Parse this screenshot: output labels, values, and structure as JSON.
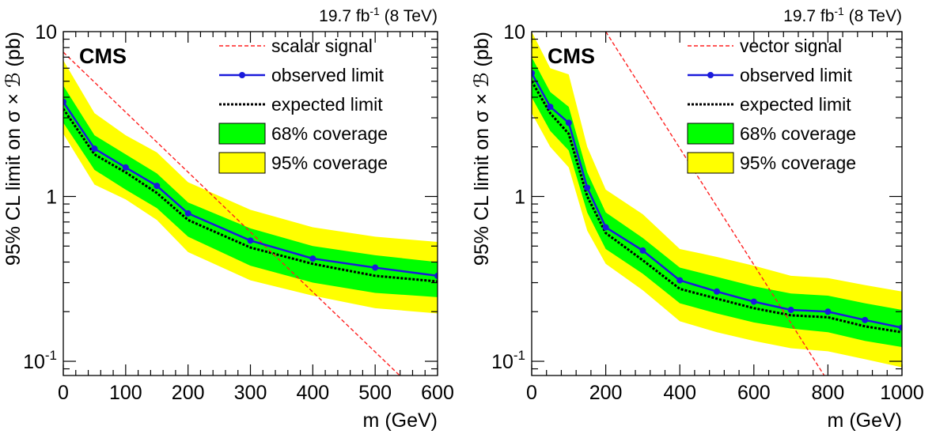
{
  "colors": {
    "band95": "#ffff00",
    "band68": "#00ff00",
    "observed": "#1a1adb",
    "expected": "#000000",
    "signal": "#ff2020",
    "frame": "#000000"
  },
  "chart_data": [
    {
      "type": "line",
      "panel": "left",
      "lumi_label": "19.7 fb",
      "lumi_sup": "-1",
      "lumi_suffix": " (8 TeV)",
      "experiment": "CMS",
      "xlabel": "m (GeV)",
      "ylabel": "95% CL limit on σ × ℬ (pb)",
      "xlim": [
        0,
        600
      ],
      "ylim": [
        0.082,
        10
      ],
      "yscale": "log",
      "grid": false,
      "legend_position": "top-right",
      "x_ticks": [
        0,
        100,
        200,
        300,
        400,
        500,
        600
      ],
      "x_tick_labels": [
        "0",
        "100",
        "200",
        "300",
        "400",
        "500",
        "600"
      ],
      "y_ticks": [
        0.1,
        1,
        10
      ],
      "y_tick_labels": [
        {
          "base": "10",
          "sup": "-1"
        },
        {
          "base": "1",
          "sup": ""
        },
        {
          "base": "10",
          "sup": ""
        }
      ],
      "legend": {
        "signal": "scalar signal",
        "observed": "observed limit",
        "expected": "expected limit",
        "band68": "68% coverage",
        "band95": "95% coverage"
      },
      "x": [
        0,
        50,
        100,
        150,
        200,
        300,
        400,
        500,
        600
      ],
      "observed": [
        3.75,
        1.95,
        1.5,
        1.16,
        0.79,
        0.54,
        0.42,
        0.37,
        0.33
      ],
      "expected": [
        3.4,
        1.8,
        1.4,
        1.05,
        0.72,
        0.49,
        0.39,
        0.33,
        0.305
      ],
      "band68_low": [
        2.8,
        1.45,
        1.1,
        0.85,
        0.57,
        0.38,
        0.3,
        0.26,
        0.245
      ],
      "band68_high": [
        4.7,
        2.35,
        1.8,
        1.38,
        0.92,
        0.64,
        0.5,
        0.44,
        0.4
      ],
      "band95_low": [
        2.4,
        1.18,
        0.96,
        0.72,
        0.46,
        0.31,
        0.25,
        0.21,
        0.195
      ],
      "band95_high": [
        6.7,
        3.2,
        2.35,
        1.85,
        1.22,
        0.83,
        0.65,
        0.57,
        0.53
      ],
      "signal": {
        "x": [
          0,
          550
        ],
        "y": [
          7.5,
          0.075
        ]
      }
    },
    {
      "type": "line",
      "panel": "right",
      "lumi_label": "19.7 fb",
      "lumi_sup": "-1",
      "lumi_suffix": " (8 TeV)",
      "experiment": "CMS",
      "xlabel": "m (GeV)",
      "ylabel": "95% CL limit on σ × ℬ (pb)",
      "xlim": [
        0,
        1000
      ],
      "ylim": [
        0.082,
        10
      ],
      "yscale": "log",
      "grid": false,
      "legend_position": "top-right",
      "x_ticks": [
        0,
        200,
        400,
        600,
        800,
        1000
      ],
      "x_tick_labels": [
        "0",
        "200",
        "400",
        "600",
        "800",
        "1000"
      ],
      "y_ticks": [
        0.1,
        1,
        10
      ],
      "y_tick_labels": [
        {
          "base": "10",
          "sup": "-1"
        },
        {
          "base": "1",
          "sup": ""
        },
        {
          "base": "10",
          "sup": ""
        }
      ],
      "legend": {
        "signal": "vector signal",
        "observed": "observed limit",
        "expected": "expected limit",
        "band68": "68% coverage",
        "band95": "95% coverage"
      },
      "x": [
        0,
        50,
        100,
        150,
        200,
        300,
        400,
        500,
        600,
        700,
        800,
        900,
        1000
      ],
      "observed": [
        5.6,
        3.5,
        2.8,
        1.13,
        0.65,
        0.47,
        0.31,
        0.265,
        0.23,
        0.205,
        0.2,
        0.178,
        0.16
      ],
      "expected": [
        5.0,
        3.2,
        2.4,
        1.0,
        0.6,
        0.41,
        0.275,
        0.24,
        0.21,
        0.19,
        0.185,
        0.163,
        0.15
      ],
      "band68_low": [
        4.0,
        2.5,
        1.9,
        0.8,
        0.48,
        0.34,
        0.225,
        0.195,
        0.172,
        0.158,
        0.15,
        0.133,
        0.122
      ],
      "band68_high": [
        7.0,
        4.3,
        3.5,
        1.4,
        0.8,
        0.56,
        0.37,
        0.325,
        0.285,
        0.258,
        0.25,
        0.225,
        0.205
      ],
      "band95_low": [
        3.2,
        2.0,
        1.5,
        0.62,
        0.39,
        0.27,
        0.175,
        0.15,
        0.133,
        0.12,
        0.115,
        0.103,
        0.092
      ],
      "band95_high": [
        10.0,
        6.0,
        5.5,
        2.0,
        1.1,
        0.78,
        0.48,
        0.43,
        0.38,
        0.33,
        0.32,
        0.29,
        0.265
      ],
      "signal": {
        "x": [
          200,
          790
        ],
        "y": [
          10.0,
          0.082
        ]
      }
    }
  ]
}
